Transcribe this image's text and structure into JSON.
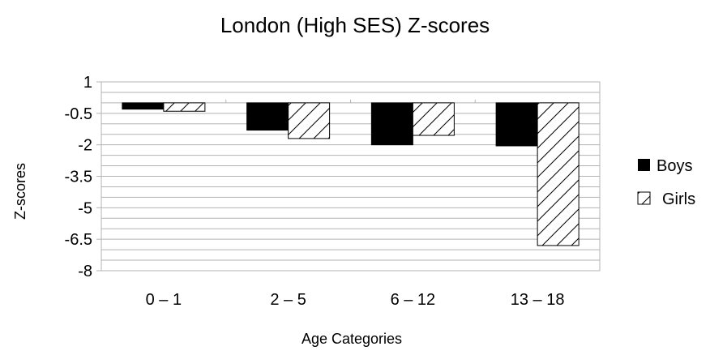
{
  "chart_data": {
    "type": "bar",
    "title": "London (High SES) Z-scores",
    "xlabel": "Age Categories",
    "ylabel": "Z-scores",
    "categories": [
      "0 – 1",
      "2 – 5",
      "6 – 12",
      "13 – 18"
    ],
    "series": [
      {
        "name": "Boys",
        "values": [
          -0.3,
          -1.3,
          -2.0,
          -2.05
        ],
        "fill": "#000000"
      },
      {
        "name": "Girls",
        "values": [
          -0.4,
          -1.7,
          -1.55,
          -6.8
        ],
        "fill": "hatch"
      }
    ],
    "ylim": [
      -8,
      1
    ],
    "yticks": [
      "1",
      "-0.5",
      "-2",
      "-3.5",
      "-5",
      "-6.5",
      "-8"
    ],
    "ytick_values": [
      1,
      -0.5,
      -2,
      -3.5,
      -5,
      -6.5,
      -8
    ],
    "minor_grid_step": 0.5,
    "grid": true,
    "legend_position": "right",
    "colors": {
      "boys": "#000000",
      "girls_hatch": "#000000",
      "grid": "#b3b3b3",
      "plot_border": "#b3b3b3"
    }
  }
}
